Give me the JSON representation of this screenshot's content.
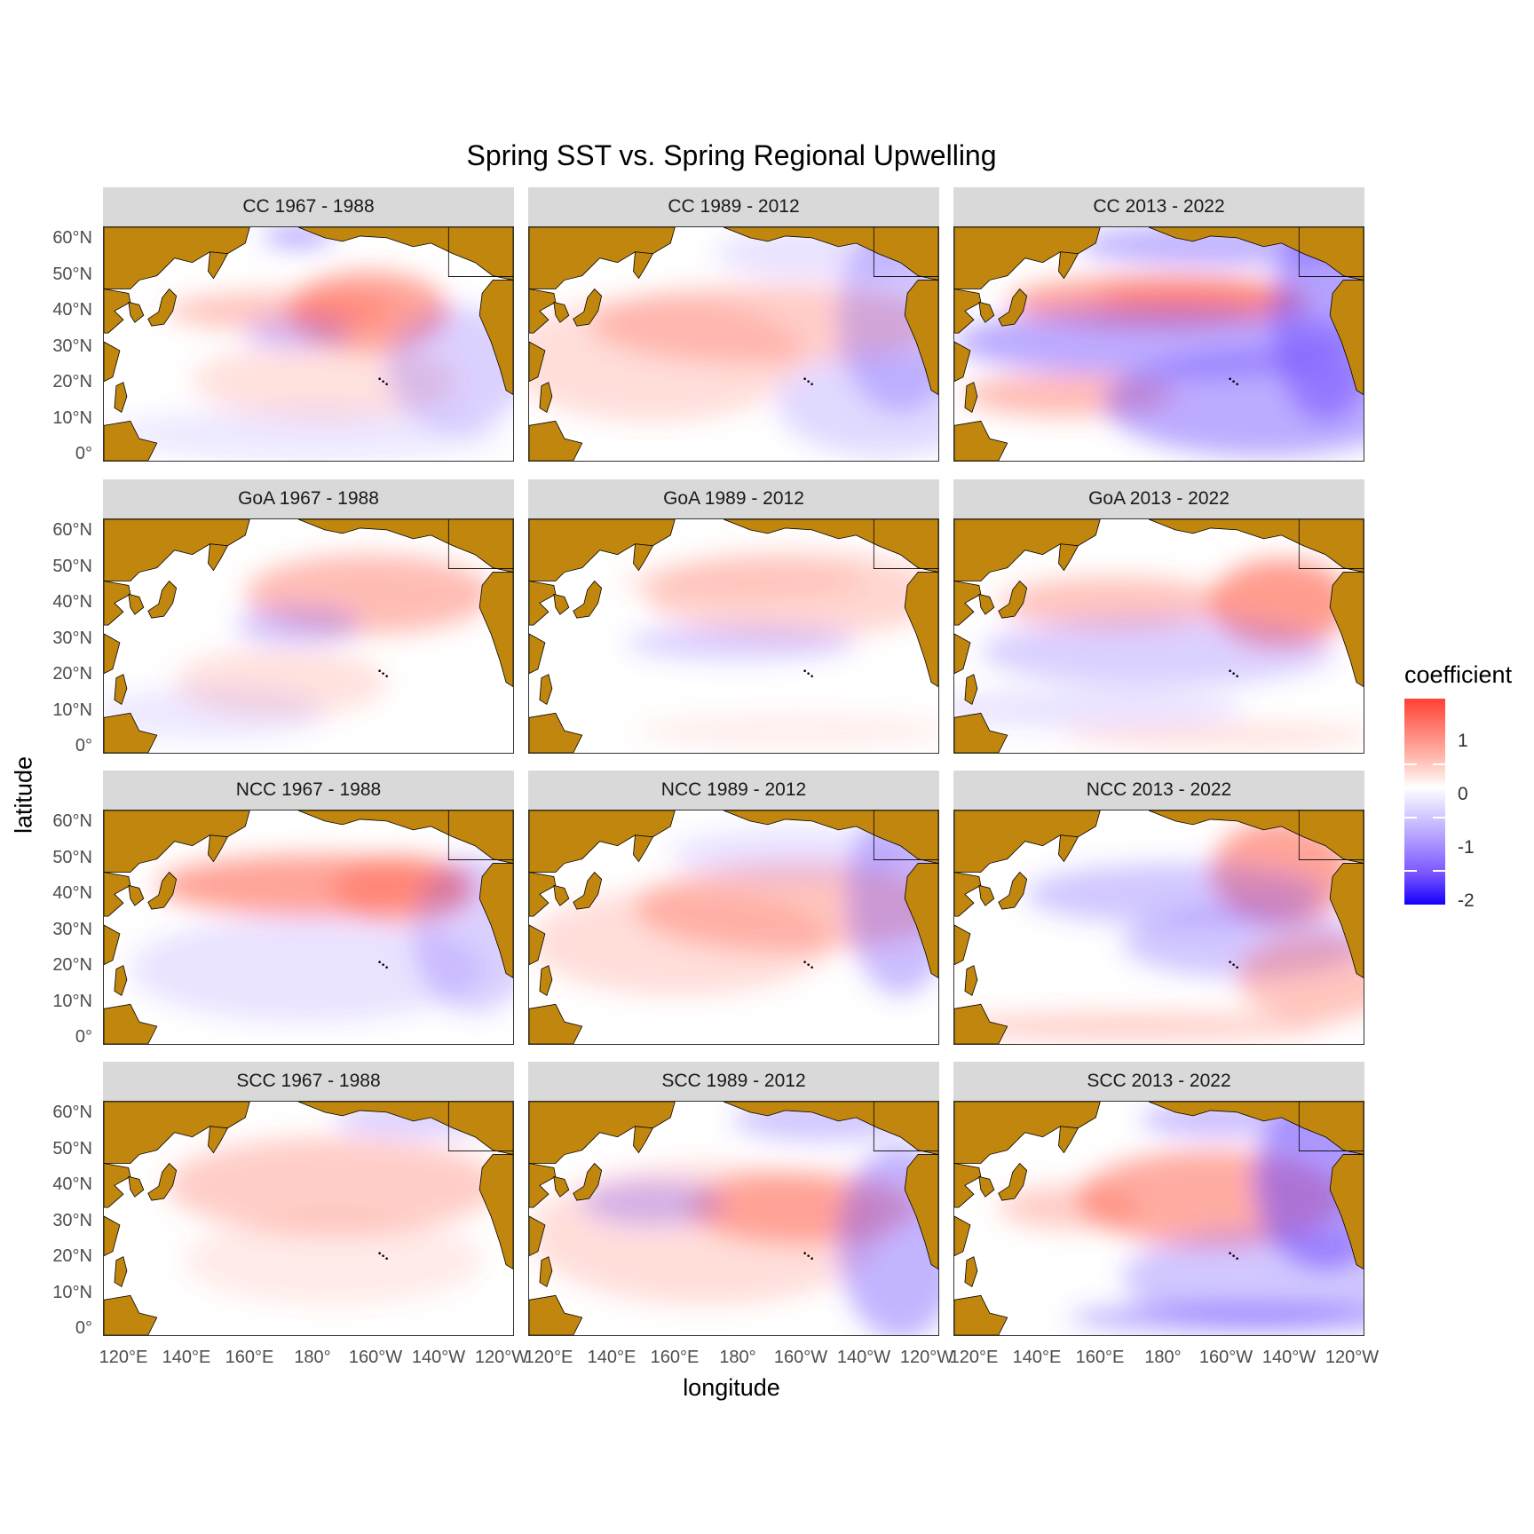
{
  "title": "Spring SST vs. Spring Regional Upwelling",
  "x_axis_title": "longitude",
  "y_axis_title": "latitude",
  "x_ticks": [
    "120°E",
    "140°E",
    "160°E",
    "180°",
    "160°W",
    "140°W",
    "120°W"
  ],
  "y_ticks": [
    "60°N",
    "50°N",
    "40°N",
    "30°N",
    "20°N",
    "10°N",
    "0°"
  ],
  "legend": {
    "title": "coefficient",
    "labels": [
      "1",
      "0",
      "-1",
      "-2"
    ],
    "colors": {
      "high": "#ff4033",
      "mid": "#ffffff",
      "low": "#1400ff"
    }
  },
  "land_color": "#c0860e",
  "rows": [
    "CC",
    "GoA",
    "NCC",
    "SCC"
  ],
  "cols": [
    "1967 - 1988",
    "1989 - 2012",
    "2013 - 2022"
  ],
  "panels": [
    {
      "label": "CC 1967 - 1988"
    },
    {
      "label": "CC 1989 - 2012"
    },
    {
      "label": "CC 2013 - 2022"
    },
    {
      "label": "GoA 1967 - 1988"
    },
    {
      "label": "GoA 1989 - 2012"
    },
    {
      "label": "GoA 2013 - 2022"
    },
    {
      "label": "NCC 1967 - 1988"
    },
    {
      "label": "NCC 1989 - 2012"
    },
    {
      "label": "NCC 2013 - 2022"
    },
    {
      "label": "SCC 1967 - 1988"
    },
    {
      "label": "SCC 1989 - 2012"
    },
    {
      "label": "SCC 2013 - 2022"
    }
  ]
}
